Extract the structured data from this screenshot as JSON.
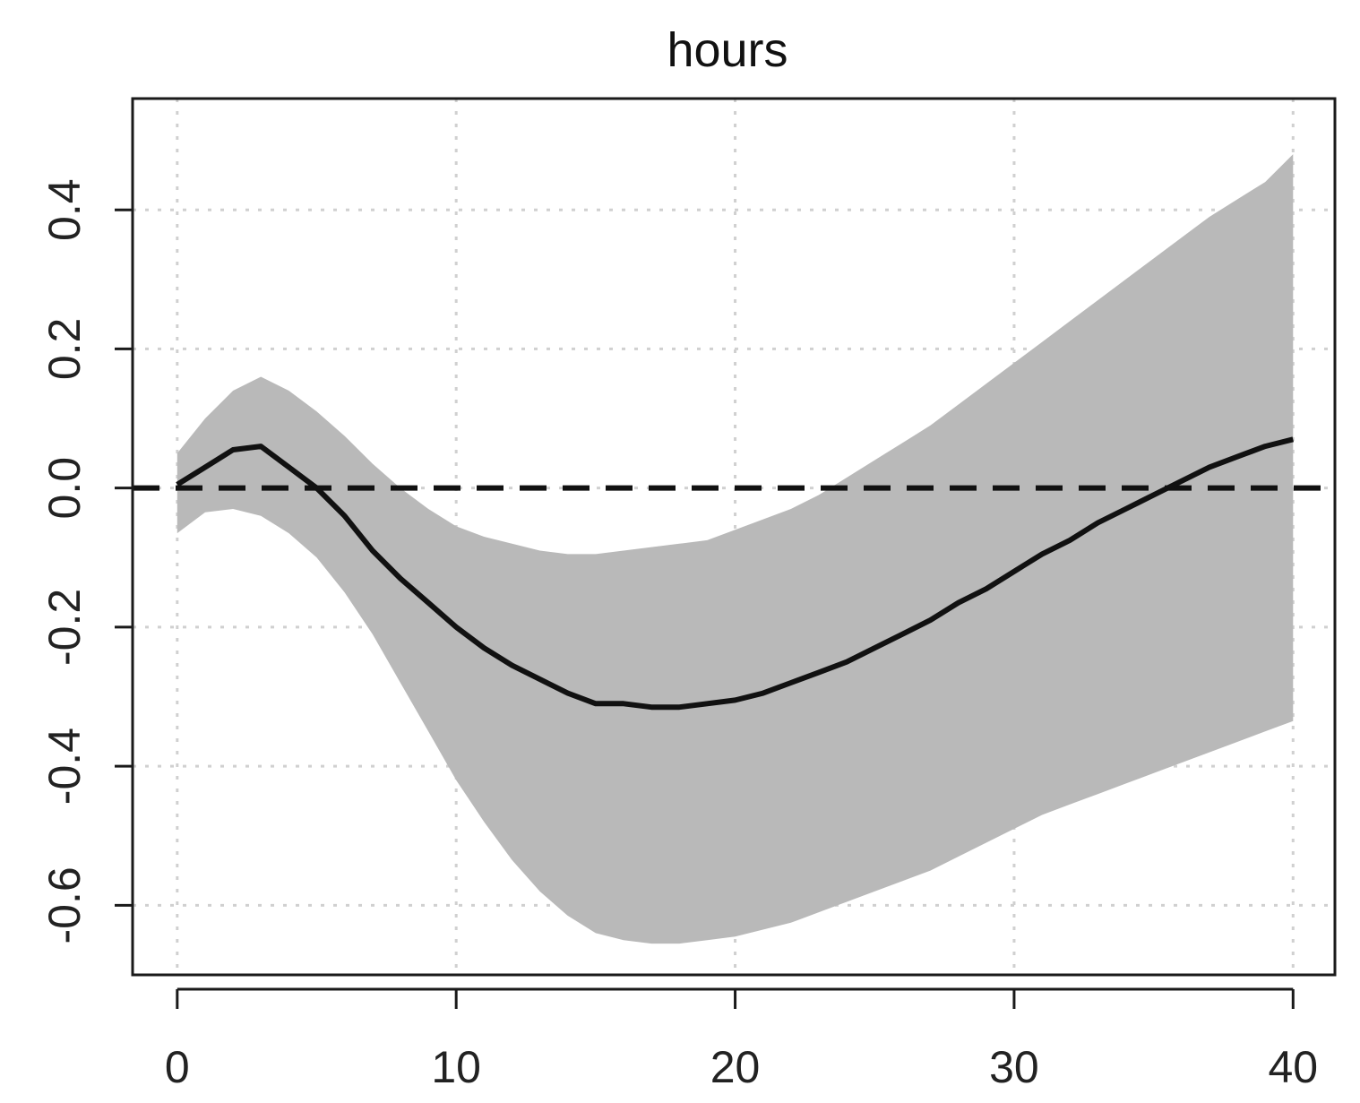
{
  "chart_data": {
    "type": "line",
    "title": "hours",
    "xlabel": "",
    "ylabel": "",
    "xlim": [
      -1.6,
      41.5
    ],
    "ylim": [
      -0.7,
      0.56
    ],
    "x_ticks": [
      0,
      10,
      20,
      30,
      40
    ],
    "y_ticks": [
      -0.6,
      -0.4,
      -0.2,
      0.0,
      0.2,
      0.4
    ],
    "x_tick_labels": [
      "0",
      "10",
      "20",
      "30",
      "40"
    ],
    "y_tick_labels": [
      "-0.6",
      "-0.4",
      "-0.2",
      "0.0",
      "0.2",
      "0.4"
    ],
    "grid": true,
    "reference_line": {
      "y": 0.0,
      "style": "dashed"
    },
    "x": [
      0,
      1,
      2,
      3,
      4,
      5,
      6,
      7,
      8,
      9,
      10,
      11,
      12,
      13,
      14,
      15,
      16,
      17,
      18,
      19,
      20,
      21,
      22,
      23,
      24,
      25,
      26,
      27,
      28,
      29,
      30,
      31,
      32,
      33,
      34,
      35,
      36,
      37,
      38,
      39,
      40
    ],
    "series": [
      {
        "values": [
          0.005,
          0.03,
          0.055,
          0.06,
          0.03,
          0.0,
          -0.04,
          -0.09,
          -0.13,
          -0.165,
          -0.2,
          -0.23,
          -0.255,
          -0.275,
          -0.295,
          -0.31,
          -0.31,
          -0.315,
          -0.315,
          -0.31,
          -0.305,
          -0.295,
          -0.28,
          -0.265,
          -0.25,
          -0.23,
          -0.21,
          -0.19,
          -0.165,
          -0.145,
          -0.12,
          -0.095,
          -0.075,
          -0.05,
          -0.03,
          -0.01,
          0.01,
          0.03,
          0.045,
          0.06,
          0.07
        ],
        "lower": [
          -0.065,
          -0.035,
          -0.03,
          -0.04,
          -0.065,
          -0.1,
          -0.15,
          -0.21,
          -0.28,
          -0.35,
          -0.42,
          -0.48,
          -0.535,
          -0.58,
          -0.615,
          -0.64,
          -0.65,
          -0.655,
          -0.655,
          -0.65,
          -0.645,
          -0.635,
          -0.625,
          -0.61,
          -0.595,
          -0.58,
          -0.565,
          -0.55,
          -0.53,
          -0.51,
          -0.49,
          -0.47,
          -0.455,
          -0.44,
          -0.425,
          -0.41,
          -0.395,
          -0.38,
          -0.365,
          -0.35,
          -0.335
        ],
        "upper": [
          0.05,
          0.1,
          0.14,
          0.16,
          0.14,
          0.11,
          0.075,
          0.035,
          0.0,
          -0.03,
          -0.055,
          -0.07,
          -0.08,
          -0.09,
          -0.095,
          -0.095,
          -0.09,
          -0.085,
          -0.08,
          -0.075,
          -0.06,
          -0.045,
          -0.03,
          -0.01,
          0.015,
          0.04,
          0.065,
          0.09,
          0.12,
          0.15,
          0.18,
          0.21,
          0.24,
          0.27,
          0.3,
          0.33,
          0.36,
          0.39,
          0.415,
          0.44,
          0.48
        ]
      }
    ]
  },
  "colors": {
    "band": "#b9b9b9",
    "line": "#111111",
    "frame": "#1a1a1a",
    "grid": "#d0d0d0"
  }
}
